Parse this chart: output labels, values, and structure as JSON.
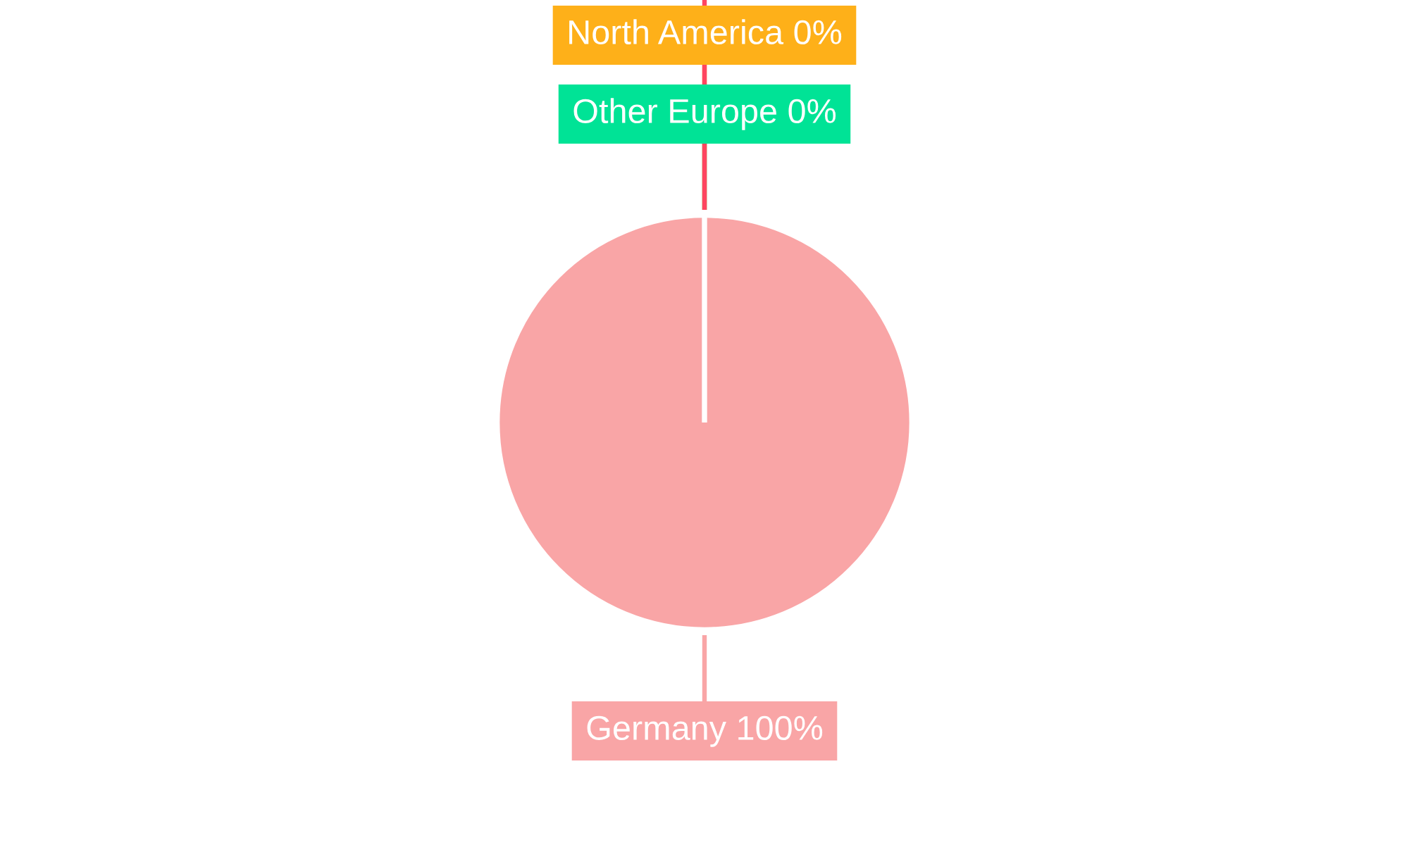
{
  "chart_data": {
    "type": "pie",
    "categories": [
      "Germany",
      "Other Europe",
      "North America",
      null
    ],
    "values": [
      100,
      0,
      0,
      0
    ],
    "colors": [
      "#f9a5a6",
      "#00e396",
      "#feb019",
      "#ff4560"
    ],
    "value_labels": [
      "100%",
      "0%",
      "0%",
      null
    ]
  }
}
